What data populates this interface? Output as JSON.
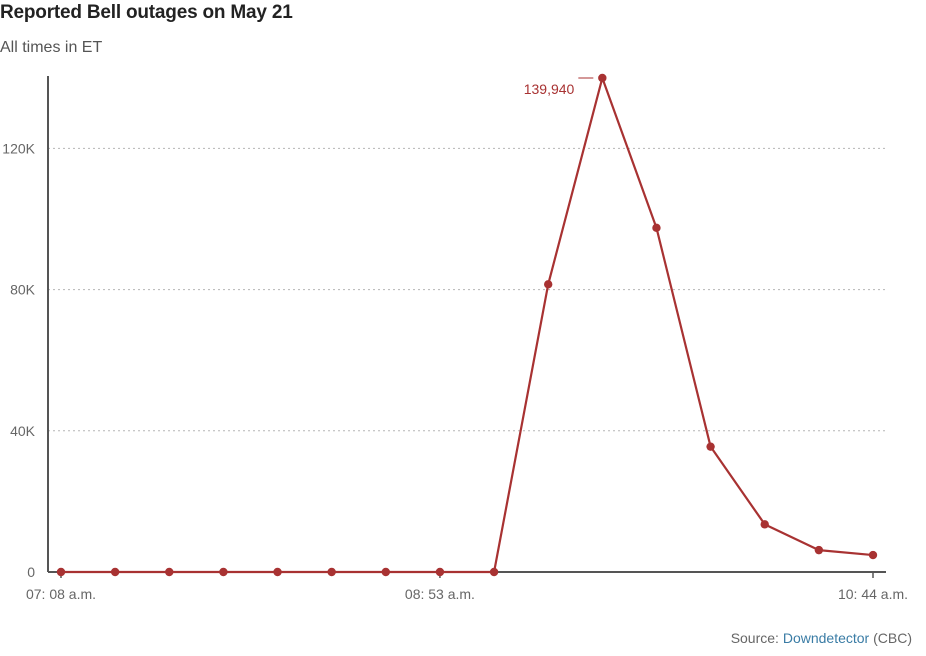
{
  "chart_data": {
    "type": "line",
    "title": "Reported Bell outages on May 21",
    "subtitle": "All times in ET",
    "x_tick_labels": [
      "07: 08 a.m.",
      "08: 53 a.m.",
      "10: 44 a.m."
    ],
    "y_tick_labels": [
      "0",
      "40K",
      "80K",
      "120K"
    ],
    "y_ticks": [
      0,
      40000,
      80000,
      120000
    ],
    "ylim": [
      0,
      140000
    ],
    "grid": true,
    "series": [
      {
        "color": "#a83232",
        "values": [
          0,
          0,
          0,
          0,
          0,
          0,
          0,
          0,
          0,
          81500,
          139940,
          97500,
          35500,
          13500,
          6200,
          4800
        ]
      }
    ],
    "annotations": [
      {
        "label": "139,940",
        "point_index": 10
      }
    ]
  },
  "source": {
    "prefix": "Source: ",
    "link": "Downdetector",
    "suffix": " (CBC)"
  }
}
